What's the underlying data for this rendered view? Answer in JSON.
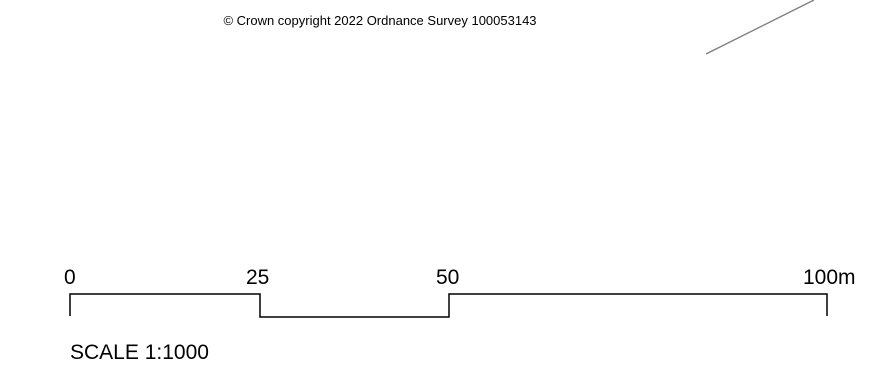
{
  "copyright": "© Crown copyright 2022 Ordnance Survey 100053143",
  "scale_bar": {
    "tick_labels": [
      "0",
      "25",
      "50",
      "100m"
    ],
    "scale_text": "SCALE 1:1000"
  },
  "colors": {
    "map_line": "#7f7f7f",
    "scale_bar": "#000000"
  }
}
